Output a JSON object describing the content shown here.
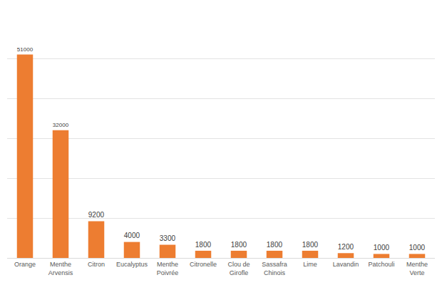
{
  "chart_data": {
    "type": "bar",
    "categories": [
      "Orange",
      "Menthe Arvensis",
      "Citron",
      "Eucalyptus",
      "Menthe Poivrée",
      "Citronelle",
      "Clou de Girofle",
      "Sassafra Chinois",
      "Lime",
      "Lavandin",
      "Patchouli",
      "Menthe Verte"
    ],
    "values": [
      51000,
      32000,
      9200,
      4000,
      3300,
      1800,
      1800,
      1800,
      1800,
      1200,
      1000,
      1000
    ],
    "color": "#ed7d31",
    "ylim": [
      0,
      60000
    ],
    "yticks": [
      0,
      10000,
      20000,
      30000,
      40000,
      50000,
      60000
    ],
    "grid": true,
    "data_labels": true,
    "tick_labels": "x"
  }
}
